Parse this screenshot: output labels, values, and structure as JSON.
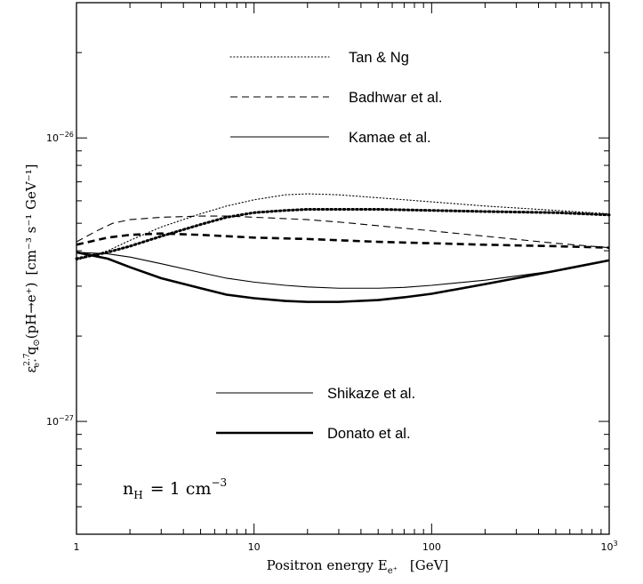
{
  "chart_data": {
    "type": "line",
    "xscale": "log",
    "yscale": "log",
    "xlim": [
      1,
      1000
    ],
    "ylim": [
      4e-28,
      3e-26
    ],
    "grid": false,
    "x_tick_labels": [
      {
        "value": 1,
        "label": "1"
      },
      {
        "value": 10,
        "label": "10"
      },
      {
        "value": 100,
        "label": "100"
      },
      {
        "value": 1000,
        "label": "10",
        "sup": "3"
      }
    ],
    "y_tick_labels": [
      {
        "value": 1e-26,
        "base": "10",
        "exp": "−26"
      },
      {
        "value": 1e-27,
        "base": "10",
        "exp": "−27"
      }
    ],
    "xlabel": {
      "text": "Positron energy E",
      "sub": "e⁺",
      "unit": "[GeV]"
    },
    "ylabel": {
      "pre": "ε",
      "pre_sub": "e⁺",
      "pre_sup": "2.7",
      "main": "q",
      "main_sub": "⊙",
      "main_paren": "(pH→e⁺)",
      "units": "[cm⁻³ s⁻¹ GeV⁻¹]"
    },
    "annotation": {
      "text": "n",
      "sub": "H",
      "rest": "= 1 cm",
      "sup": "−3"
    },
    "legend_groups": [
      {
        "position": "top-center",
        "entries": [
          {
            "label": "Tan & Ng",
            "style": "dotted"
          },
          {
            "label": "Badhwar et al.",
            "style": "dashed"
          },
          {
            "label": "Kamae et al.",
            "style": "solid"
          }
        ]
      },
      {
        "position": "bottom-center",
        "entries": [
          {
            "label": "Shikaze et al.",
            "style": "solid",
            "width": "thin"
          },
          {
            "label": "Donato et al.",
            "style": "solid",
            "width": "thick"
          }
        ]
      }
    ],
    "series": [
      {
        "style": "dotted",
        "weight": "thin",
        "x": [
          1,
          1.5,
          2,
          3,
          5,
          7,
          10,
          15,
          20,
          30,
          50,
          100,
          200,
          500,
          1000
        ],
        "y": [
          3.7e-27,
          4e-27,
          4.35e-27,
          4.85e-27,
          5.4e-27,
          5.75e-27,
          6.05e-27,
          6.3e-27,
          6.35e-27,
          6.3e-27,
          6.15e-27,
          5.95e-27,
          5.75e-27,
          5.55e-27,
          5.4e-27
        ]
      },
      {
        "style": "dotted",
        "weight": "thick",
        "x": [
          1,
          1.5,
          2,
          3,
          5,
          7,
          10,
          15,
          20,
          30,
          50,
          100,
          200,
          500,
          1000
        ],
        "y": [
          3.75e-27,
          3.95e-27,
          4.15e-27,
          4.5e-27,
          4.95e-27,
          5.25e-27,
          5.45e-27,
          5.55e-27,
          5.6e-27,
          5.6e-27,
          5.6e-27,
          5.55e-27,
          5.5e-27,
          5.45e-27,
          5.35e-27
        ]
      },
      {
        "style": "dashed",
        "weight": "thin",
        "x": [
          1,
          1.3,
          1.6,
          2,
          3,
          5,
          7,
          10,
          20,
          30,
          50,
          100,
          200,
          500,
          1000
        ],
        "y": [
          4.3e-27,
          4.7e-27,
          5e-27,
          5.15e-27,
          5.25e-27,
          5.3e-27,
          5.3e-27,
          5.25e-27,
          5.15e-27,
          5.05e-27,
          4.9e-27,
          4.7e-27,
          4.5e-27,
          4.25e-27,
          4.1e-27
        ]
      },
      {
        "style": "dashed",
        "weight": "thick",
        "x": [
          1,
          1.5,
          2,
          3,
          5,
          10,
          20,
          50,
          100,
          200,
          500,
          1000
        ],
        "y": [
          4.2e-27,
          4.45e-27,
          4.55e-27,
          4.6e-27,
          4.55e-27,
          4.45e-27,
          4.4e-27,
          4.3e-27,
          4.25e-27,
          4.2e-27,
          4.15e-27,
          4.1e-27
        ]
      },
      {
        "style": "solid",
        "weight": "thin",
        "x": [
          1,
          1.5,
          2,
          3,
          5,
          7,
          10,
          15,
          20,
          30,
          50,
          70,
          100,
          200,
          500,
          1000
        ],
        "y": [
          3.95e-27,
          3.9e-27,
          3.8e-27,
          3.6e-27,
          3.35e-27,
          3.2e-27,
          3.1e-27,
          3.02e-27,
          2.98e-27,
          2.95e-27,
          2.95e-27,
          2.97e-27,
          3.02e-27,
          3.15e-27,
          3.4e-27,
          3.7e-27
        ]
      },
      {
        "style": "solid",
        "weight": "thick",
        "x": [
          1,
          1.5,
          2,
          3,
          5,
          7,
          10,
          15,
          20,
          30,
          50,
          70,
          100,
          200,
          500,
          1000
        ],
        "y": [
          3.95e-27,
          3.75e-27,
          3.5e-27,
          3.2e-27,
          2.95e-27,
          2.8e-27,
          2.72e-27,
          2.66e-27,
          2.64e-27,
          2.64e-27,
          2.68e-27,
          2.74e-27,
          2.82e-27,
          3.05e-27,
          3.4e-27,
          3.7e-27
        ]
      }
    ]
  }
}
